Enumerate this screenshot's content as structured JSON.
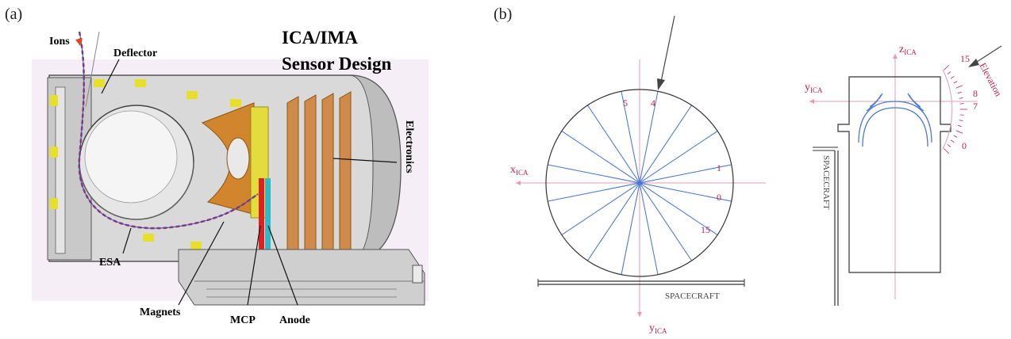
{
  "panel_a": {
    "panel_label": "(a)",
    "title_line1": "ICA/IMA",
    "title_line2": "Sensor Design",
    "labels": {
      "ions": "Ions",
      "deflector": "Deflector",
      "electronics": "Electronics",
      "esa": "ESA",
      "magnets": "Magnets",
      "mcp": "MCP",
      "anode": "Anode"
    }
  },
  "panel_b": {
    "panel_label": "(b)",
    "left_view": {
      "x_axis": {
        "base": "x",
        "sub": "ICA"
      },
      "y_axis": {
        "base": "y",
        "sub": "ICA"
      },
      "sector_numbers": [
        "5",
        "4",
        "1",
        "0",
        "15"
      ],
      "spacecraft_label": "SPACECRAFT"
    },
    "right_view": {
      "z_axis": {
        "base": "z",
        "sub": "ICA"
      },
      "y_axis": {
        "base": "y",
        "sub": "ICA"
      },
      "elevation_label": "Elevation",
      "elevation_numbers": [
        "15",
        "8",
        "7",
        "0"
      ],
      "spacecraft_label": "SPACECRAFT"
    },
    "colors": {
      "accent": "#c0224a",
      "sector_lines": "#4a78d6",
      "outline": "#333333"
    }
  }
}
